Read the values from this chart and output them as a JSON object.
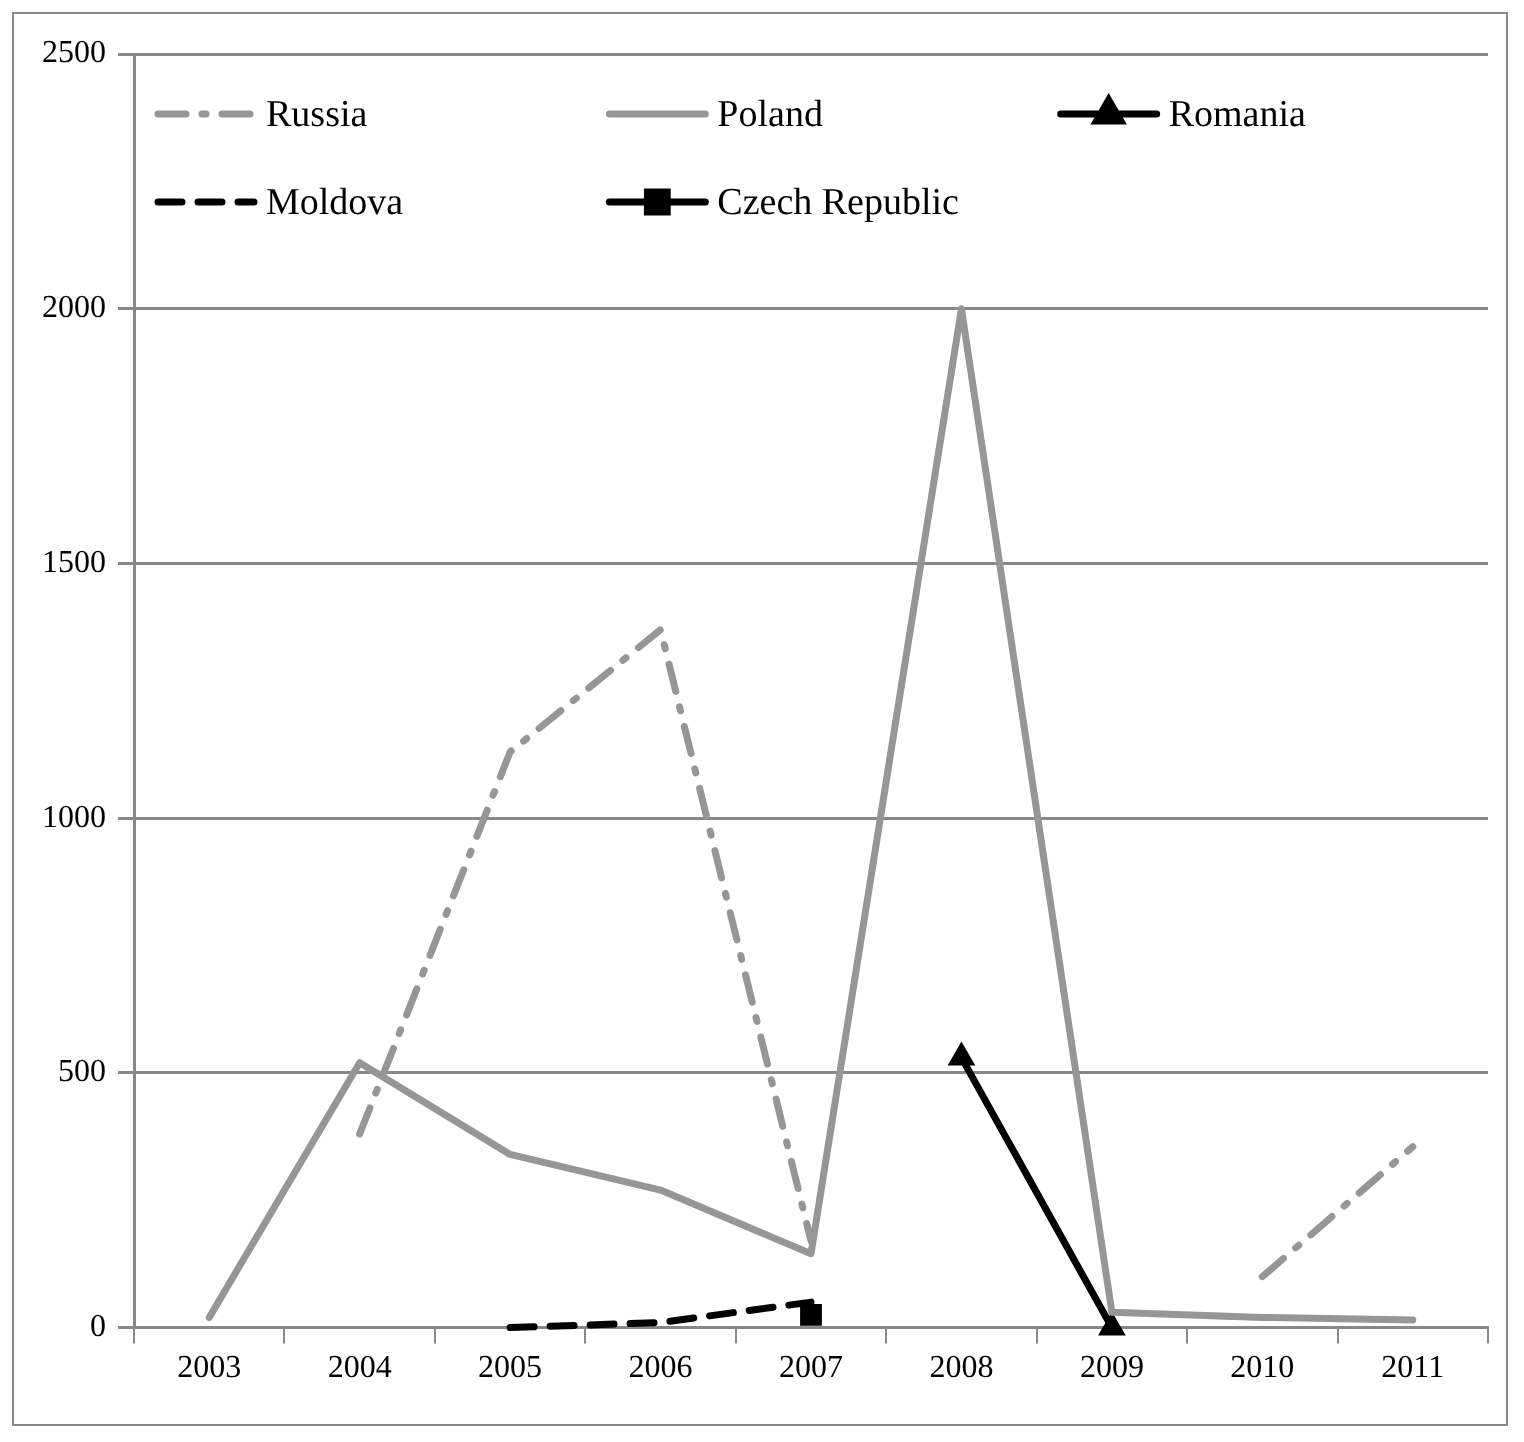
{
  "chart_data": {
    "type": "line",
    "categories": [
      "2003",
      "2004",
      "2005",
      "2006",
      "2007",
      "2008",
      "2009",
      "2010",
      "2011"
    ],
    "series": [
      {
        "name": "Russia",
        "color": "#969696",
        "line_style": "dashdot",
        "marker": "none",
        "values": [
          null,
          380,
          1130,
          1370,
          170,
          null,
          null,
          100,
          355
        ]
      },
      {
        "name": "Poland",
        "color": "#969696",
        "line_style": "solid",
        "marker": "none",
        "values": [
          20,
          520,
          340,
          270,
          145,
          2000,
          30,
          20,
          15
        ]
      },
      {
        "name": "Romania",
        "color": "#000000",
        "line_style": "solid",
        "marker": "triangle",
        "values": [
          null,
          null,
          null,
          null,
          null,
          530,
          0,
          null,
          null
        ]
      },
      {
        "name": "Moldova",
        "color": "#000000",
        "line_style": "dashed",
        "marker": "none",
        "values": [
          null,
          null,
          0,
          10,
          50,
          null,
          null,
          null,
          null
        ]
      },
      {
        "name": "Czech Republic",
        "color": "#000000",
        "line_style": "solid",
        "marker": "square",
        "values": [
          null,
          null,
          null,
          null,
          25,
          null,
          null,
          null,
          null
        ]
      }
    ],
    "ylim": [
      0,
      2500
    ],
    "yticks": [
      0,
      500,
      1000,
      1500,
      2000,
      2500
    ],
    "grid": "y",
    "legend": "top"
  }
}
